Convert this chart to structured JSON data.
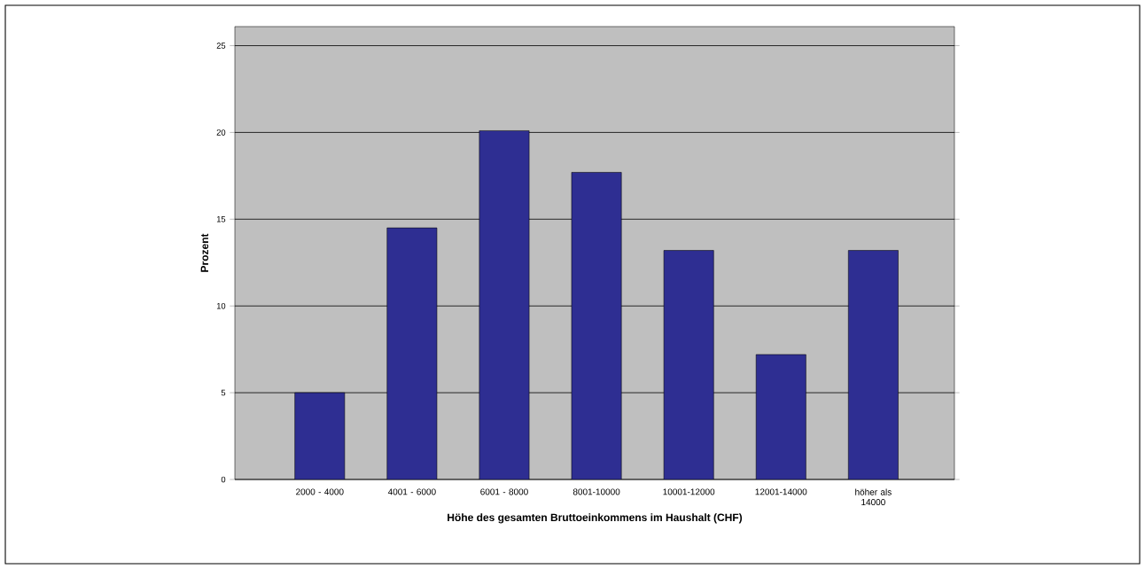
{
  "chart_data": {
    "type": "bar",
    "xlabel": "Höhe des gesamten Bruttoeinkommens im Haushalt (CHF)",
    "ylabel": "Prozent",
    "categories": [
      "2000 - 4000",
      "4001 - 6000",
      "6001 - 8000",
      "8001-10000",
      "10001-12000",
      "12001-14000",
      "höher als 14000"
    ],
    "values": [
      5.0,
      14.5,
      20.1,
      17.7,
      13.2,
      7.2,
      13.2
    ],
    "color": "#2e2e92",
    "ylim": [
      0,
      26.1
    ],
    "yticks": [
      0,
      5,
      10,
      15,
      20,
      25
    ],
    "grid": "y"
  }
}
